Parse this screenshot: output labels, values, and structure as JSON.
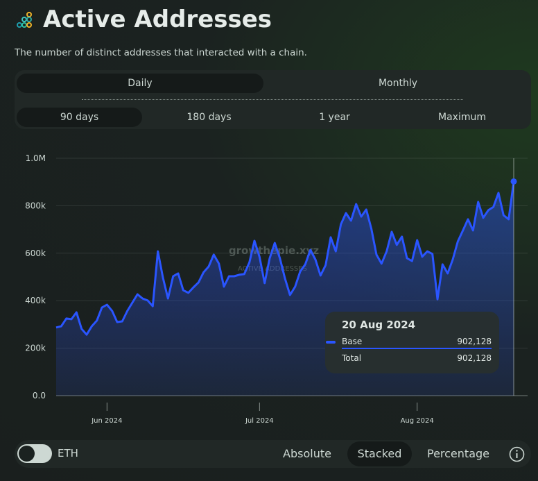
{
  "header": {
    "title": "Active Addresses",
    "subtitle": "The number of distinct addresses that interacted with a chain."
  },
  "controls": {
    "granularity": [
      "Daily",
      "Monthly"
    ],
    "ranges": [
      "90 days",
      "180 days",
      "1 year",
      "Maximum"
    ],
    "toggle_label": "ETH",
    "modes": [
      "Absolute",
      "Stacked",
      "Percentage"
    ]
  },
  "watermark": {
    "brand": "growthepie.xyz",
    "label": "ACTIVE ADDRESSES"
  },
  "tooltip": {
    "date": "20 Aug 2024",
    "rows": [
      {
        "name": "Base",
        "value": "902,128"
      },
      {
        "name": "Total",
        "value": "902,128"
      }
    ]
  },
  "chart_data": {
    "type": "area",
    "x": [
      "2024-05-22",
      "2024-05-23",
      "2024-05-24",
      "2024-05-25",
      "2024-05-26",
      "2024-05-27",
      "2024-05-28",
      "2024-05-29",
      "2024-05-30",
      "2024-05-31",
      "2024-06-01",
      "2024-06-02",
      "2024-06-03",
      "2024-06-04",
      "2024-06-05",
      "2024-06-06",
      "2024-06-07",
      "2024-06-08",
      "2024-06-09",
      "2024-06-10",
      "2024-06-11",
      "2024-06-12",
      "2024-06-13",
      "2024-06-14",
      "2024-06-15",
      "2024-06-16",
      "2024-06-17",
      "2024-06-18",
      "2024-06-19",
      "2024-06-20",
      "2024-06-21",
      "2024-06-22",
      "2024-06-23",
      "2024-06-24",
      "2024-06-25",
      "2024-06-26",
      "2024-06-27",
      "2024-06-28",
      "2024-06-29",
      "2024-06-30",
      "2024-07-01",
      "2024-07-02",
      "2024-07-03",
      "2024-07-04",
      "2024-07-05",
      "2024-07-06",
      "2024-07-07",
      "2024-07-08",
      "2024-07-09",
      "2024-07-10",
      "2024-07-11",
      "2024-07-12",
      "2024-07-13",
      "2024-07-14",
      "2024-07-15",
      "2024-07-16",
      "2024-07-17",
      "2024-07-18",
      "2024-07-19",
      "2024-07-20",
      "2024-07-21",
      "2024-07-22",
      "2024-07-23",
      "2024-07-24",
      "2024-07-25",
      "2024-07-26",
      "2024-07-27",
      "2024-07-28",
      "2024-07-29",
      "2024-07-30",
      "2024-07-31",
      "2024-08-01",
      "2024-08-02",
      "2024-08-03",
      "2024-08-04",
      "2024-08-05",
      "2024-08-06",
      "2024-08-07",
      "2024-08-08",
      "2024-08-09",
      "2024-08-10",
      "2024-08-11",
      "2024-08-12",
      "2024-08-13",
      "2024-08-14",
      "2024-08-15",
      "2024-08-16",
      "2024-08-17",
      "2024-08-18",
      "2024-08-19",
      "2024-08-20"
    ],
    "series": [
      {
        "name": "Base",
        "color": "#2a55ff",
        "values": [
          287000,
          292000,
          325000,
          322000,
          351000,
          281000,
          257000,
          292000,
          316000,
          371000,
          383000,
          357000,
          310000,
          313000,
          357000,
          392000,
          427000,
          409000,
          401000,
          377000,
          608000,
          497000,
          409000,
          503000,
          515000,
          444000,
          433000,
          456000,
          477000,
          520000,
          544000,
          594000,
          556000,
          459000,
          503000,
          503000,
          509000,
          512000,
          561000,
          652000,
          585000,
          474000,
          579000,
          643000,
          579000,
          494000,
          424000,
          459000,
          523000,
          553000,
          614000,
          573000,
          506000,
          550000,
          667000,
          608000,
          722000,
          769000,
          737000,
          807000,
          754000,
          784000,
          702000,
          594000,
          556000,
          608000,
          690000,
          635000,
          670000,
          579000,
          567000,
          655000,
          585000,
          608000,
          597000,
          406000,
          553000,
          515000,
          573000,
          649000,
          696000,
          743000,
          696000,
          816000,
          749000,
          781000,
          795000,
          854000,
          760000,
          743000,
          902128
        ]
      }
    ],
    "xlim": [
      "2024-05-22",
      "2024-08-20"
    ],
    "xticks": [
      {
        "value": "2024-06-01",
        "label": "Jun 2024"
      },
      {
        "value": "2024-07-01",
        "label": "Jul 2024"
      },
      {
        "value": "2024-08-01",
        "label": "Aug 2024"
      }
    ],
    "ylim": [
      0,
      1000000
    ],
    "yticks": [
      {
        "value": 0,
        "label": "0.0"
      },
      {
        "value": 200000,
        "label": "200k"
      },
      {
        "value": 400000,
        "label": "400k"
      },
      {
        "value": 600000,
        "label": "600k"
      },
      {
        "value": 800000,
        "label": "800k"
      },
      {
        "value": 1000000,
        "label": "1.0M"
      }
    ],
    "grid": true
  }
}
